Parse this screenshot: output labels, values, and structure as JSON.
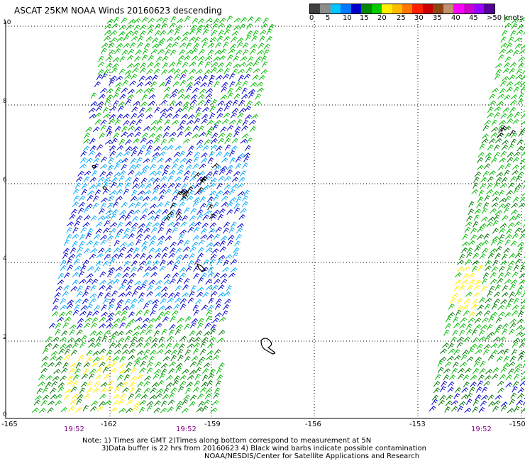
{
  "title": "ASCAT 25KM NOAA Winds 20160623 descending",
  "color_scale": {
    "swatches": [
      "#404040",
      "#8c8c8c",
      "#00c8ff",
      "#0078ff",
      "#0000c8",
      "#008800",
      "#00cc00",
      "#ffee00",
      "#ffbb00",
      "#ff7700",
      "#ff2000",
      "#cc0000",
      "#8b4513",
      "#c09070",
      "#ff00ff",
      "#cc00cc",
      "#9900ff",
      "#550099"
    ],
    "labels": [
      "0",
      "5",
      "10",
      "15",
      "20",
      "25",
      "30",
      "35",
      "40",
      "45",
      ">50 knots"
    ]
  },
  "y_axis_labels": [
    "10",
    "8",
    "6",
    "4",
    "2",
    "0"
  ],
  "x_axis_labels": [
    "-165",
    "-162",
    "-159",
    "-156",
    "-153",
    "-150"
  ],
  "time_labels": [
    "19:52",
    "19:52",
    "19:52"
  ],
  "notes": [
    "Note: 1) Times are GMT 2)Times along bottom correspond to measurement at 5N",
    "3)Data buffer is 22 hrs from 20160623 4) Black wind barbs indicate possible contamination",
    "NOAA/NESDIS/Center for Satellite Applications and Research"
  ],
  "colors": {
    "light_blue": "#00aaff",
    "blue": "#0000cc",
    "green": "#00bb00",
    "dark_green": "#007700",
    "yellow": "#ffee00",
    "black": "#000000",
    "time_purple": "#800080"
  }
}
